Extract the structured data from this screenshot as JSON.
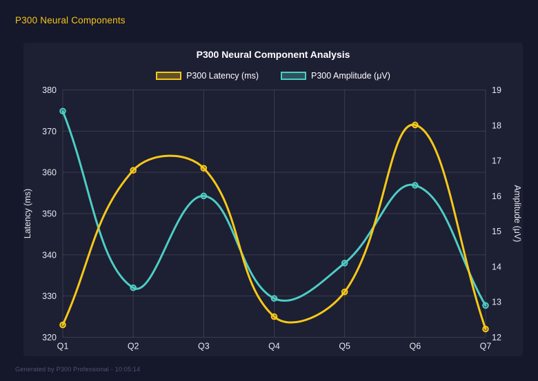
{
  "header": {
    "title": "P300 Neural Components"
  },
  "footer": {
    "text": "Generated by P300 Professional - 10:05:14"
  },
  "theme": {
    "page_background": "#15172a",
    "panel_background": "#1d1f33",
    "grid_color": "rgba(255,255,255,0.13)",
    "tick_text_color": "#e6e7ee",
    "title_color": "#ffffff",
    "header_accent": "#f5c518",
    "footer_color": "#4f5472"
  },
  "chart_data": {
    "type": "line",
    "title": "P300 Neural Component Analysis",
    "categories": [
      "Q1",
      "Q2",
      "Q3",
      "Q4",
      "Q5",
      "Q6",
      "Q7"
    ],
    "series": [
      {
        "name": "P300 Latency (ms)",
        "axis": "left",
        "color": "#f8c818",
        "values": [
          323,
          360.5,
          361,
          325,
          331,
          371.5,
          322
        ]
      },
      {
        "name": "P300 Amplitude (μV)",
        "axis": "right",
        "color": "#4ecdc4",
        "values": [
          18.4,
          13.4,
          16.0,
          13.1,
          14.1,
          16.3,
          12.9
        ]
      }
    ],
    "left_axis": {
      "label": "Latency (ms)",
      "min": 320,
      "max": 380,
      "step": 10
    },
    "right_axis": {
      "label": "Amplitude (μV)",
      "min": 12,
      "max": 19,
      "step": 1
    },
    "grid": true,
    "legend_position": "top",
    "line_tension": 0.4
  }
}
